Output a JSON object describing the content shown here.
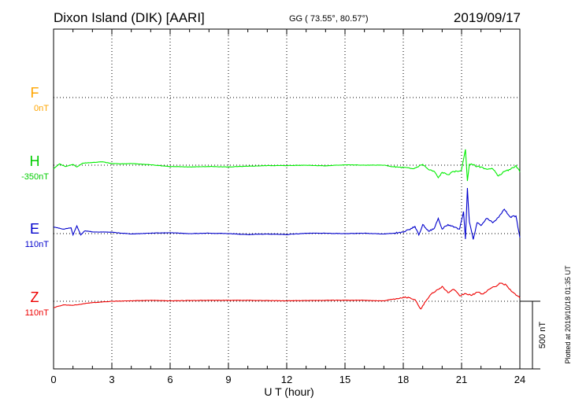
{
  "header": {
    "station": "Dixon Island (DIK)  [AARI]",
    "coords": "GG ( 73.55°,  80.57°)",
    "date": "2019/09/17"
  },
  "footer": {
    "plotted": "Plotted at 2019/10/18 01:35 UT"
  },
  "colors": {
    "F": "#ffa500",
    "H": "#00ee00",
    "E": "#0000cc",
    "Z": "#ee0000",
    "grid": "#000000",
    "axis": "#000000"
  },
  "chart_data": {
    "type": "line",
    "xlabel": "U T (hour)",
    "xlim": [
      0,
      24
    ],
    "xticks": [
      "0",
      "3",
      "6",
      "9",
      "12",
      "15",
      "18",
      "21",
      "24"
    ],
    "scale_bar": {
      "label": "500 nT",
      "value_nT": 500
    },
    "components": [
      {
        "name": "F",
        "baseline_label": "0nT"
      },
      {
        "name": "H",
        "baseline_label": "-350nT"
      },
      {
        "name": "E",
        "baseline_label": "110nT"
      },
      {
        "name": "Z",
        "baseline_label": "110nT"
      }
    ],
    "series": [
      {
        "name": "H",
        "x": [
          0,
          0.3,
          0.6,
          1.0,
          1.2,
          1.5,
          2.0,
          2.5,
          3.0,
          3.5,
          4.0,
          5.0,
          6.0,
          7.0,
          8.0,
          9.0,
          10.0,
          11.0,
          12.0,
          13.0,
          14.0,
          15.0,
          16.0,
          17.0,
          17.5,
          18.0,
          18.5,
          19.0,
          19.3,
          19.6,
          19.8,
          20.0,
          20.3,
          20.6,
          20.9,
          21.0,
          21.2,
          21.3,
          21.4,
          21.6,
          21.8,
          22.0,
          22.3,
          22.6,
          22.9,
          23.2,
          23.5,
          23.8,
          24.0
        ],
        "values": [
          -27,
          10,
          -10,
          5,
          -13,
          15,
          20,
          25,
          12,
          10,
          12,
          3,
          -10,
          -13,
          -10,
          -13,
          -8,
          -3,
          -3,
          0,
          -5,
          3,
          0,
          0,
          -13,
          -17,
          -27,
          6,
          -33,
          -47,
          -93,
          -53,
          -70,
          -47,
          -43,
          -33,
          117,
          -117,
          7,
          3,
          -10,
          -13,
          -30,
          -27,
          -80,
          -47,
          -33,
          -3,
          -50
        ]
      },
      {
        "name": "E",
        "x": [
          0,
          0.5,
          0.9,
          1.0,
          1.2,
          1.4,
          1.6,
          2.0,
          3.0,
          4.0,
          5.0,
          6.0,
          7.0,
          8.0,
          9.0,
          10.0,
          11.0,
          12.0,
          13.0,
          14.0,
          15.0,
          16.0,
          17.0,
          17.5,
          18.0,
          18.3,
          18.6,
          18.8,
          19.0,
          19.3,
          19.6,
          19.8,
          20.0,
          20.3,
          20.6,
          20.9,
          21.1,
          21.2,
          21.3,
          21.4,
          21.6,
          21.8,
          22.0,
          22.3,
          22.6,
          22.9,
          23.2,
          23.5,
          23.8,
          24.0
        ],
        "values": [
          50,
          33,
          43,
          -10,
          57,
          -10,
          20,
          13,
          10,
          -3,
          3,
          7,
          0,
          3,
          0,
          -7,
          -3,
          -7,
          3,
          3,
          0,
          3,
          -3,
          3,
          10,
          30,
          53,
          -10,
          67,
          17,
          40,
          113,
          33,
          67,
          47,
          33,
          163,
          -40,
          337,
          87,
          -43,
          80,
          60,
          113,
          80,
          120,
          180,
          123,
          130,
          -30
        ]
      },
      {
        "name": "Z",
        "x": [
          0,
          0.5,
          1.0,
          1.5,
          2.0,
          3.0,
          4.0,
          5.0,
          6.0,
          8.0,
          10.0,
          12.0,
          14.0,
          16.0,
          17.0,
          17.5,
          18.0,
          18.3,
          18.6,
          18.9,
          19.2,
          19.5,
          19.8,
          20.0,
          20.3,
          20.6,
          20.9,
          21.2,
          21.5,
          21.8,
          22.1,
          22.4,
          22.7,
          23.0,
          23.3,
          23.6,
          23.9,
          24.0
        ],
        "values": [
          -47,
          -27,
          -30,
          -20,
          -10,
          0,
          3,
          7,
          3,
          7,
          7,
          3,
          7,
          7,
          3,
          17,
          30,
          27,
          13,
          -57,
          10,
          63,
          87,
          110,
          63,
          87,
          40,
          57,
          43,
          67,
          53,
          87,
          107,
          133,
          120,
          70,
          37,
          23
        ]
      }
    ]
  }
}
